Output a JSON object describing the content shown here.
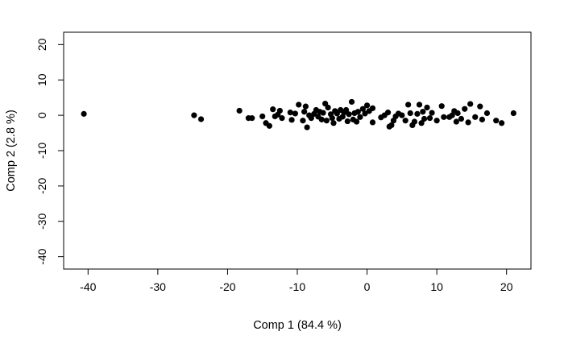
{
  "chart_data": {
    "type": "scatter",
    "title": "",
    "xlabel": "Comp 1 (84.4 %)",
    "ylabel": "Comp 2 (2.8 %)",
    "xlim": [
      -43.5,
      23.5
    ],
    "ylim": [
      -43.5,
      23.5
    ],
    "xticks": [
      -40,
      -30,
      -20,
      -10,
      0,
      10,
      20
    ],
    "yticks": [
      -40,
      -30,
      -20,
      -10,
      0,
      10,
      20
    ],
    "grid": false,
    "legend": "none",
    "marker_color": "#000000",
    "series": [
      {
        "points": [
          [
            -40.6,
            0.4
          ],
          [
            -24.8,
            0.0
          ],
          [
            -23.8,
            -1.1
          ],
          [
            -18.3,
            1.3
          ],
          [
            -17.0,
            -0.8
          ],
          [
            -16.5,
            -0.8
          ],
          [
            -15.0,
            -0.3
          ],
          [
            -14.5,
            -2.2
          ],
          [
            -14.0,
            -3.0
          ],
          [
            -13.5,
            1.7
          ],
          [
            -13.2,
            -0.3
          ],
          [
            -12.8,
            0.2
          ],
          [
            -12.5,
            1.3
          ],
          [
            -12.2,
            -0.8
          ],
          [
            -11.0,
            0.8
          ],
          [
            -10.8,
            -1.3
          ],
          [
            -10.3,
            0.5
          ],
          [
            -9.8,
            3.0
          ],
          [
            -9.2,
            -1.5
          ],
          [
            -9.0,
            1.0
          ],
          [
            -8.8,
            2.5
          ],
          [
            -8.6,
            -3.4
          ],
          [
            -8.3,
            0.0
          ],
          [
            -8.0,
            -0.8
          ],
          [
            -7.6,
            0.4
          ],
          [
            -7.3,
            1.5
          ],
          [
            -7.0,
            -0.4
          ],
          [
            -6.8,
            1.0
          ],
          [
            -6.5,
            -1.2
          ],
          [
            -6.3,
            0.7
          ],
          [
            -6.0,
            3.3
          ],
          [
            -5.8,
            -1.5
          ],
          [
            -5.6,
            2.2
          ],
          [
            -5.2,
            0.3
          ],
          [
            -5.0,
            -0.8
          ],
          [
            -4.8,
            -2.2
          ],
          [
            -4.6,
            1.2
          ],
          [
            -4.3,
            0.5
          ],
          [
            -4.0,
            -1.0
          ],
          [
            -3.8,
            1.5
          ],
          [
            -3.5,
            -0.4
          ],
          [
            -3.3,
            0.8
          ],
          [
            -3.0,
            1.5
          ],
          [
            -2.8,
            -1.7
          ],
          [
            -2.6,
            0.3
          ],
          [
            -2.2,
            3.8
          ],
          [
            -2.0,
            -1.2
          ],
          [
            -1.8,
            0.6
          ],
          [
            -1.5,
            -1.8
          ],
          [
            -1.3,
            1.0
          ],
          [
            -1.0,
            -0.5
          ],
          [
            -0.6,
            1.8
          ],
          [
            -0.3,
            0.5
          ],
          [
            0.0,
            2.8
          ],
          [
            0.3,
            1.2
          ],
          [
            0.8,
            2.0
          ],
          [
            0.8,
            -2.0
          ],
          [
            2.0,
            -0.6
          ],
          [
            2.5,
            0.0
          ],
          [
            3.0,
            0.8
          ],
          [
            3.2,
            -3.2
          ],
          [
            3.5,
            -2.8
          ],
          [
            3.8,
            -1.5
          ],
          [
            4.1,
            -0.3
          ],
          [
            4.5,
            0.5
          ],
          [
            5.0,
            0.0
          ],
          [
            5.5,
            -1.5
          ],
          [
            5.9,
            3.0
          ],
          [
            6.2,
            0.6
          ],
          [
            6.5,
            -2.8
          ],
          [
            6.8,
            -1.8
          ],
          [
            7.2,
            0.4
          ],
          [
            7.5,
            3.0
          ],
          [
            7.8,
            -2.2
          ],
          [
            8.0,
            1.0
          ],
          [
            8.2,
            -1.0
          ],
          [
            8.6,
            2.2
          ],
          [
            9.0,
            -0.8
          ],
          [
            9.3,
            0.7
          ],
          [
            10.0,
            -1.5
          ],
          [
            10.7,
            2.6
          ],
          [
            11.0,
            -0.5
          ],
          [
            11.8,
            -0.5
          ],
          [
            12.2,
            0.0
          ],
          [
            12.5,
            1.2
          ],
          [
            12.8,
            -1.8
          ],
          [
            13.0,
            0.6
          ],
          [
            13.5,
            -1.0
          ],
          [
            14.0,
            1.8
          ],
          [
            14.5,
            -2.0
          ],
          [
            14.8,
            3.2
          ],
          [
            15.5,
            -0.5
          ],
          [
            16.2,
            2.5
          ],
          [
            16.5,
            -1.2
          ],
          [
            17.2,
            0.6
          ],
          [
            18.5,
            -1.5
          ],
          [
            19.3,
            -2.2
          ],
          [
            21.0,
            0.6
          ]
        ]
      }
    ]
  }
}
